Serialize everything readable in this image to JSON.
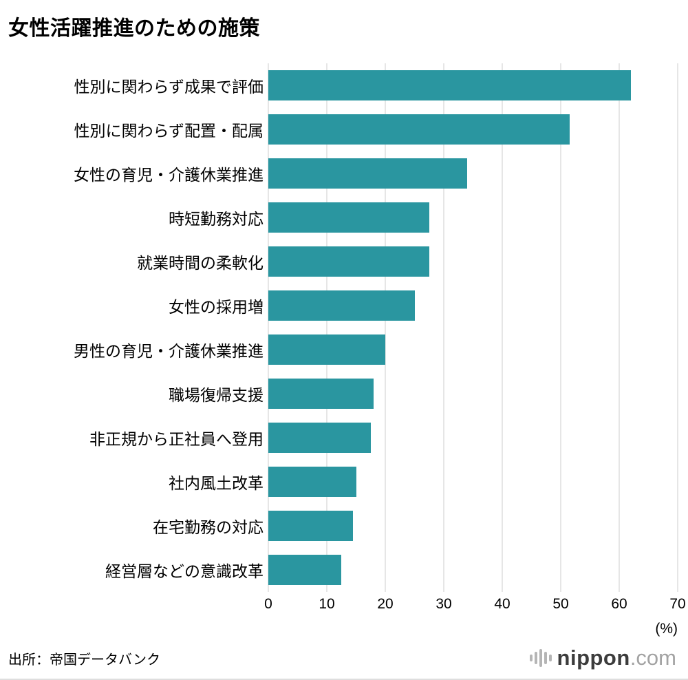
{
  "title": "女性活躍推進のための施策",
  "source": "出所：帝国データバンク",
  "brand": {
    "name": "nippon",
    "suffix": ".com"
  },
  "chart_data": {
    "type": "bar",
    "orientation": "horizontal",
    "title": "女性活躍推進のための施策",
    "categories": [
      "性別に関わらず成果で評価",
      "性別に関わらず配置・配属",
      "女性の育児・介護休業推進",
      "時短勤務対応",
      "就業時間の柔軟化",
      "女性の採用増",
      "男性の育児・介護休業推進",
      "職場復帰支援",
      "非正規から正社員へ登用",
      "社内風土改革",
      "在宅勤務の対応",
      "経営層などの意識改革"
    ],
    "values": [
      62,
      51.5,
      34,
      27.5,
      27.5,
      25,
      20,
      18,
      17.5,
      15,
      14.5,
      12.5
    ],
    "xlim": [
      0,
      70
    ],
    "xticks": [
      0,
      10,
      20,
      30,
      40,
      50,
      60,
      70
    ],
    "x_unit": "(%)",
    "bar_color": "#2a96a0",
    "gridline_color": "#cccccc",
    "grid": true,
    "legend": false
  }
}
